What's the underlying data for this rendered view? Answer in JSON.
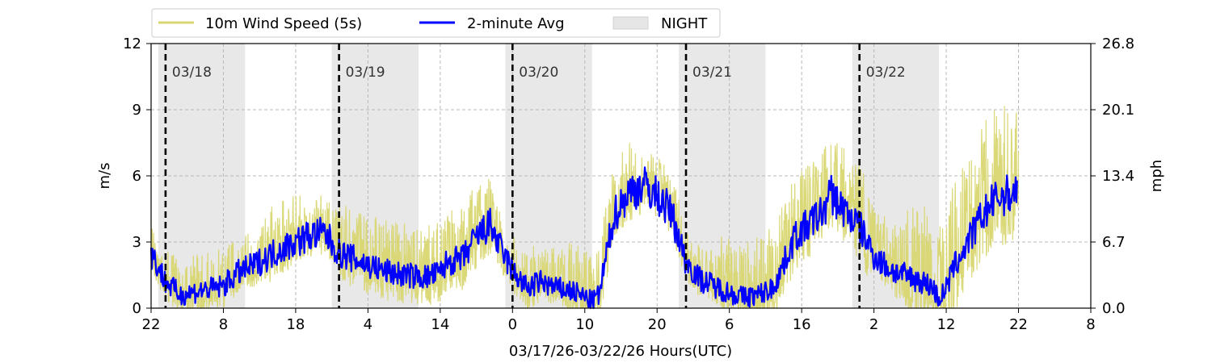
{
  "chart_data": {
    "type": "line",
    "xlabel": "03/17/26-03/22/26  Hours(UTC)",
    "ylabel_left": "m/s",
    "ylabel_right": "mph",
    "x_axis": {
      "start": "03/17 22:00 UTC",
      "end": "03/23 08:00 UTC"
    },
    "x_ticks": [
      "22",
      "8",
      "18",
      "4",
      "14",
      "0",
      "10",
      "20",
      "6",
      "16",
      "2",
      "12",
      "22",
      "8"
    ],
    "ylim": [
      0,
      12
    ],
    "y_ticks_left": [
      "0",
      "3",
      "6",
      "9",
      "12"
    ],
    "y_ticks_right": [
      "0.0",
      "6.7",
      "13.4",
      "20.1",
      "26.8"
    ],
    "grid": true,
    "legend": {
      "placement": "top-left, above plot",
      "entries": [
        "10m Wind Speed (5s)",
        "2-minute Avg",
        "NIGHT"
      ]
    },
    "day_markers": [
      {
        "label": "03/18",
        "time": "03/18 00:00"
      },
      {
        "label": "03/19",
        "time": "03/19 00:00"
      },
      {
        "label": "03/20",
        "time": "03/20 00:00"
      },
      {
        "label": "03/21",
        "time": "03/21 00:00"
      },
      {
        "label": "03/22",
        "time": "03/22 00:00"
      }
    ],
    "night_periods": [
      {
        "start": "03/17 23:00",
        "end": "03/18 11:00"
      },
      {
        "start": "03/18 23:00",
        "end": "03/19 11:00"
      },
      {
        "start": "03/19 23:00",
        "end": "03/20 11:00"
      },
      {
        "start": "03/20 23:00",
        "end": "03/21 11:00"
      },
      {
        "start": "03/21 23:00",
        "end": "03/22 11:00"
      }
    ],
    "series": [
      {
        "name": "10m Wind Speed (5s)",
        "color": "#d8d670",
        "representation": "envelope around 2-minute Avg",
        "upper_margin_m_s": [
          1.6,
          1.8,
          1.8,
          2.2,
          1.8,
          2.4,
          2.4,
          2.4,
          2.6,
          1.8,
          1.8,
          2.2,
          2.4,
          1.8,
          1.6,
          2.5,
          2.8,
          2.8,
          2.8,
          2.2,
          3.5,
          3.8,
          4.2
        ]
      },
      {
        "name": "2-minute Avg",
        "color": "#0000ff",
        "hours": [
          "03/17 22:00",
          "03/18 00:00",
          "03/18 02:00",
          "03/18 05:00",
          "03/18 08:00",
          "03/18 10:00",
          "03/18 12:00",
          "03/18 14:00",
          "03/18 16:00",
          "03/18 18:00",
          "03/18 20:00",
          "03/18 22:00",
          "03/19 00:00",
          "03/19 03:00",
          "03/19 06:00",
          "03/19 09:00",
          "03/19 12:00",
          "03/19 14:00",
          "03/19 15:00",
          "03/19 17:00",
          "03/19 19:00",
          "03/19 21:00",
          "03/19 22:00",
          "03/20 00:00",
          "03/20 02:00",
          "03/20 04:00",
          "03/20 06:00",
          "03/20 08:00",
          "03/20 10:00",
          "03/20 11:00",
          "03/20 12:00",
          "03/20 14:00",
          "03/20 16:00",
          "03/20 18:00",
          "03/20 20:00",
          "03/20 22:00",
          "03/20 23:00",
          "03/21 00:00",
          "03/21 02:00",
          "03/21 04:00",
          "03/21 06:00",
          "03/21 08:00",
          "03/21 10:00",
          "03/21 12:00",
          "03/21 13:00",
          "03/21 15:00",
          "03/21 17:00",
          "03/21 19:00",
          "03/21 20:00",
          "03/21 22:00",
          "03/22 00:00",
          "03/22 02:00",
          "03/22 04:00",
          "03/22 06:00",
          "03/22 08:00",
          "03/22 10:00",
          "03/22 11:00",
          "03/22 12:00",
          "03/22 13:00",
          "03/22 15:00",
          "03/22 17:00",
          "03/22 19:00",
          "03/22 21:00",
          "03/22 22:00"
        ],
        "values": [
          2.5,
          1.2,
          0.6,
          0.8,
          1.0,
          1.6,
          1.9,
          2.3,
          2.7,
          3.0,
          3.3,
          3.4,
          2.5,
          2.1,
          1.7,
          1.5,
          1.4,
          1.6,
          2.1,
          2.2,
          3.2,
          3.8,
          2.9,
          1.7,
          0.9,
          1.2,
          0.9,
          0.8,
          0.5,
          0.3,
          0.6,
          4.2,
          5.2,
          5.6,
          5.1,
          4.3,
          3.2,
          2.1,
          1.3,
          1.0,
          0.7,
          0.5,
          0.6,
          0.9,
          1.6,
          3.2,
          3.8,
          4.4,
          5.2,
          4.4,
          3.7,
          2.4,
          1.8,
          1.5,
          1.3,
          1.0,
          0.4,
          0.9,
          1.8,
          3.0,
          4.2,
          5.0,
          5.2,
          5.4
        ]
      }
    ]
  }
}
